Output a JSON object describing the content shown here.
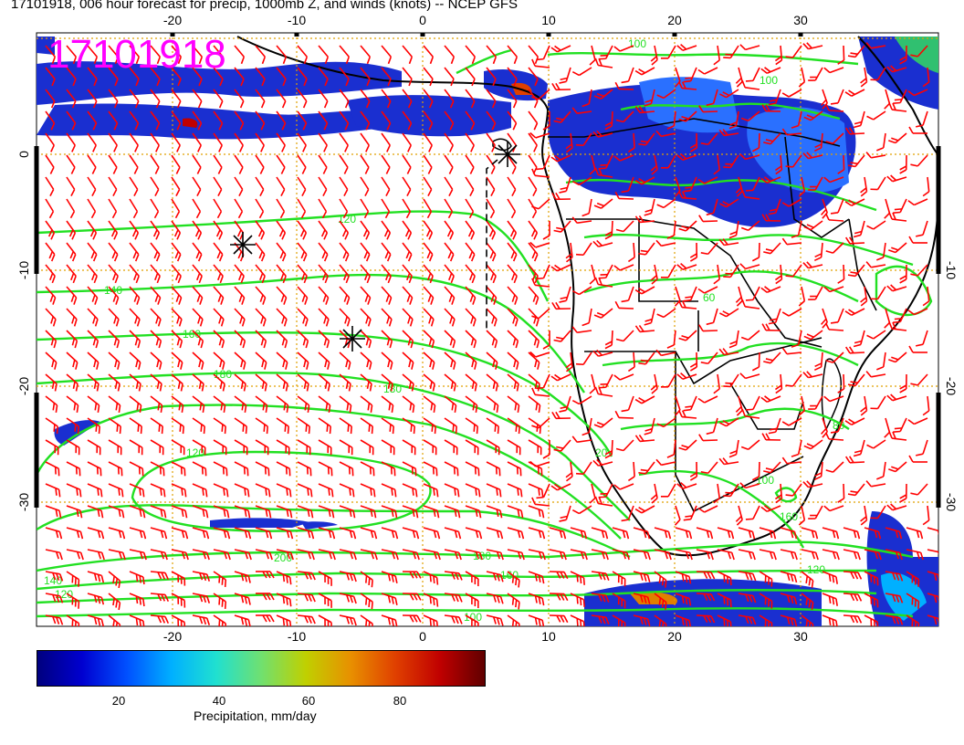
{
  "title": "17101918, 006 hour forecast for precip, 1000mb Z, and winds (knots) -- NCEP GFS",
  "stamp": "17101918",
  "lon_ticks": [
    "-20",
    "-10",
    "0",
    "10",
    "20",
    "30"
  ],
  "lat_ticks": [
    "0",
    "-10",
    "-20",
    "-30"
  ],
  "contour_labels": [
    "100",
    "100",
    "120",
    "140",
    "160",
    "180",
    "180",
    "200",
    "120",
    "180",
    "160",
    "140",
    "120",
    "100",
    "120",
    "160",
    "60",
    "80",
    "20",
    "100"
  ],
  "colorbar": {
    "ticks": [
      "20",
      "40",
      "60",
      "80"
    ],
    "label": "Precipitation, mm/day",
    "colors": [
      "#00007f",
      "#0000d0",
      "#0050ff",
      "#00b0ff",
      "#20e0d0",
      "#70e070",
      "#c0d000",
      "#e89000",
      "#e04000",
      "#c00000",
      "#600000"
    ]
  },
  "colors": {
    "contour": "#22e022",
    "wind": "#ff0000",
    "grid": "#e0a000",
    "coast": "#000000",
    "stamp": "#ff00ff"
  }
}
